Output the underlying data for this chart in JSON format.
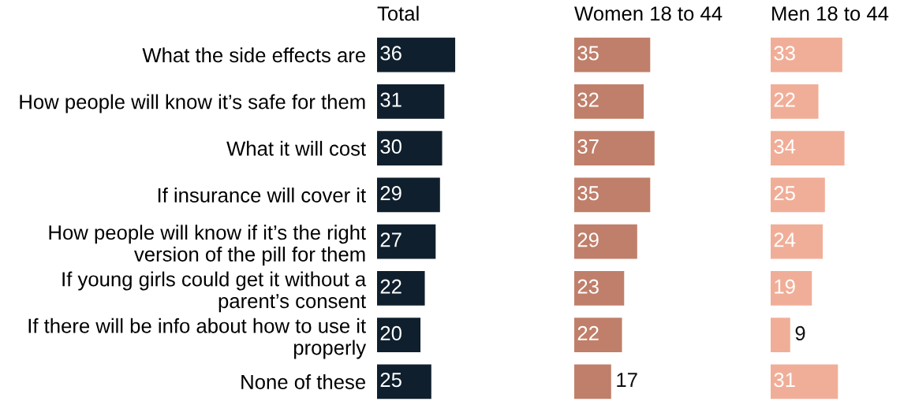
{
  "chart_data": [
    {
      "type": "bar",
      "orientation": "horizontal",
      "title": "Total",
      "categories": [
        "What the side effects are",
        "How people will know it’s safe for them",
        "What it will cost",
        "If insurance will cover it",
        "How people will know if it’s the right version of the pill for them",
        "If young girls could get it without a parent’s consent",
        "If there will be info about how to use it properly",
        "None of these"
      ],
      "values": [
        36,
        31,
        30,
        29,
        27,
        22,
        20,
        25
      ],
      "color": "#0f1f2d",
      "data_labels": true
    },
    {
      "type": "bar",
      "orientation": "horizontal",
      "title": "Women 18 to 44",
      "categories": [
        null,
        null,
        null,
        null,
        null,
        null,
        null,
        null
      ],
      "values": [
        35,
        32,
        37,
        35,
        29,
        23,
        22,
        17
      ],
      "color": "#c07f6a",
      "data_labels": true
    },
    {
      "type": "bar",
      "orientation": "horizontal",
      "title": "Men 18 to 44",
      "categories": [
        null,
        null,
        null,
        null,
        null,
        null,
        null,
        null
      ],
      "values": [
        33,
        22,
        34,
        25,
        24,
        19,
        9,
        31
      ],
      "color": "#f0ae98",
      "data_labels": true
    }
  ]
}
